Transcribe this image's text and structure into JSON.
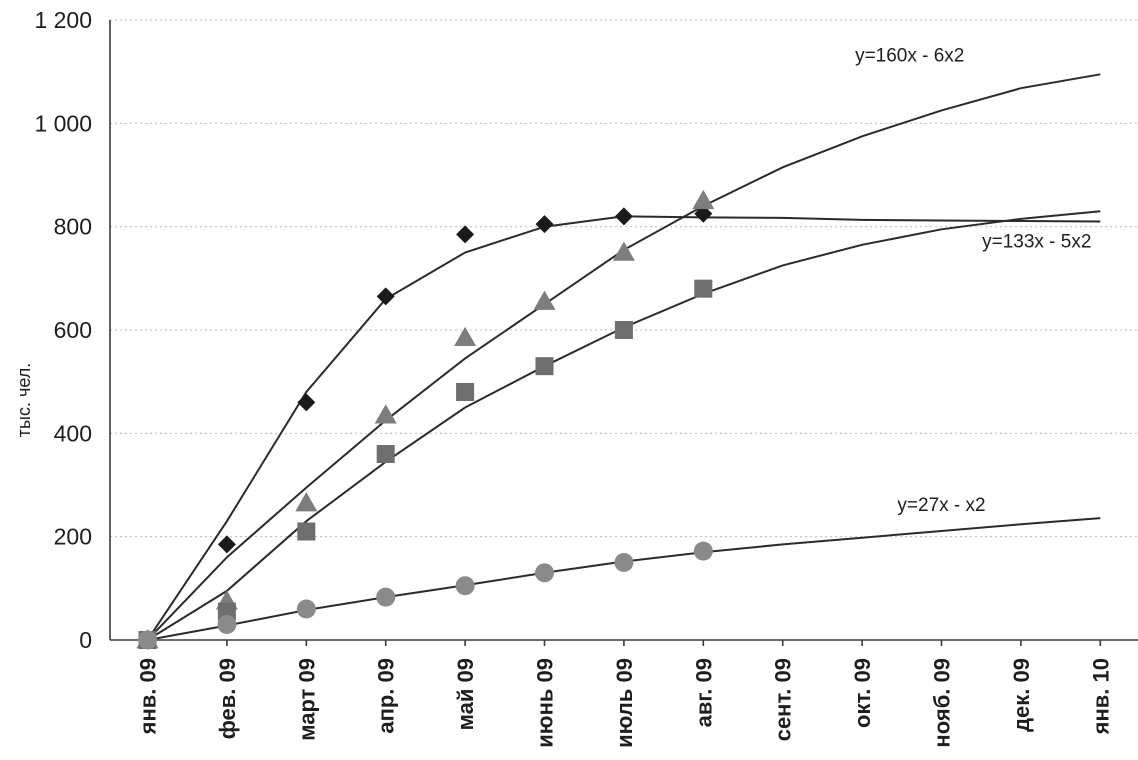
{
  "chart_data": {
    "type": "scatter",
    "title": "",
    "xlabel": "",
    "ylabel": "тыс. чел.",
    "ylim": [
      0,
      1200
    ],
    "yticks": [
      "0",
      "200",
      "400",
      "600",
      "800",
      "1 000",
      "1 200"
    ],
    "ytick_values": [
      0,
      200,
      400,
      600,
      800,
      1000,
      1200
    ],
    "categories": [
      "янв. 09",
      "фев. 09",
      "март 09",
      "апр. 09",
      "май 09",
      "июнь 09",
      "июль 09",
      "авг. 09",
      "сент. 09",
      "окт. 09",
      "нояб. 09",
      "дек. 09",
      "янв. 10"
    ],
    "grid": "horizontal",
    "legend": "none",
    "series": [
      {
        "marker": "diamond",
        "color": "#1a1a1a",
        "values": [
          0,
          185,
          460,
          665,
          785,
          805,
          820,
          825
        ]
      },
      {
        "marker": "triangle",
        "color": "#7d7d7d",
        "values": [
          0,
          75,
          265,
          435,
          585,
          655,
          750,
          850
        ]
      },
      {
        "marker": "square",
        "color": "#6e6e6e",
        "values": [
          0,
          55,
          210,
          360,
          480,
          530,
          600,
          680
        ]
      },
      {
        "marker": "circle",
        "color": "#8a8a8a",
        "values": [
          0,
          30,
          60,
          83,
          105,
          130,
          150,
          172
        ]
      }
    ],
    "trendlines": [
      {
        "values": [
          0,
          230,
          480,
          660,
          750,
          800,
          820,
          818,
          817,
          813,
          812,
          811,
          810
        ]
      },
      {
        "values": [
          0,
          160,
          295,
          425,
          545,
          650,
          755,
          840,
          915,
          975,
          1025,
          1068,
          1095
        ]
      },
      {
        "values": [
          0,
          95,
          230,
          345,
          450,
          530,
          605,
          670,
          725,
          765,
          795,
          815,
          830
        ]
      },
      {
        "values": [
          0,
          28,
          58,
          83,
          106,
          130,
          152,
          170,
          185,
          198,
          211,
          224,
          236
        ]
      }
    ],
    "annotations": [
      {
        "text": "y=160x - 6x2",
        "anchor_category": 9.6,
        "anchor_value": 1120
      },
      {
        "text": "y=133x - 5x2",
        "anchor_category": 11.2,
        "anchor_value": 760
      },
      {
        "text": "y=27x - x2",
        "anchor_category": 10.0,
        "anchor_value": 250
      }
    ]
  }
}
